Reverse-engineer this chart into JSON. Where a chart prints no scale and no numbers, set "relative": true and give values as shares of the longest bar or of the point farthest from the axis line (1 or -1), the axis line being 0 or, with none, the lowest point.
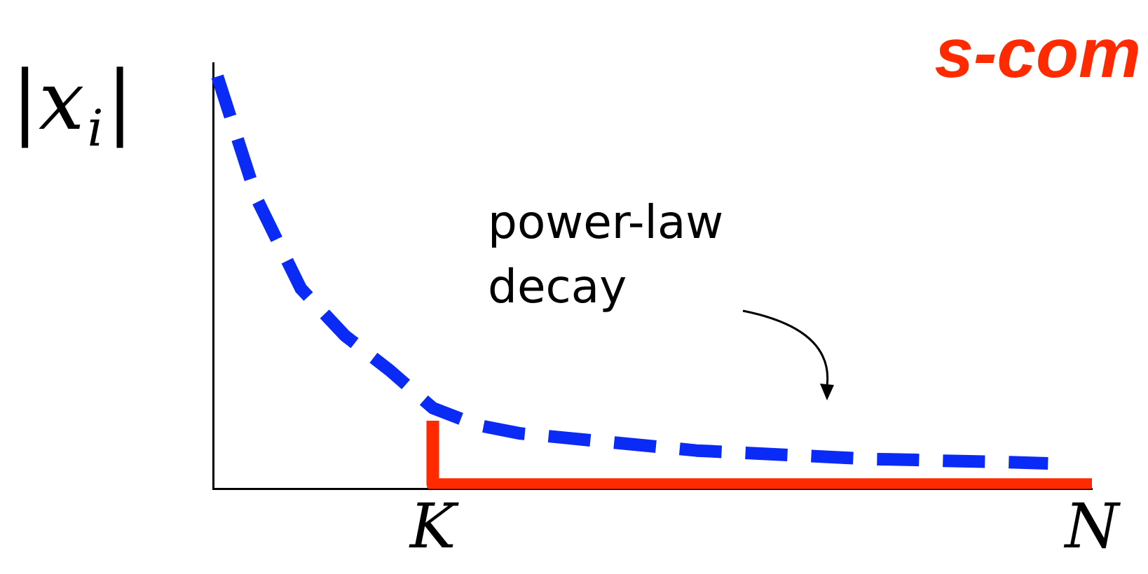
{
  "chart_data": {
    "type": "line",
    "relative": true,
    "title": "s-com",
    "ylabel": "|x$_{i}$|",
    "categories": [
      null,
      null,
      null,
      null,
      null,
      "K",
      null,
      null,
      null,
      null,
      null,
      null,
      null,
      null,
      null,
      null,
      null,
      null,
      null,
      null,
      "N"
    ],
    "grid": false,
    "legend": false,
    "marker": "none",
    "annotations": [
      "power-law decay"
    ],
    "series": [
      {
        "color": "#0a2bf5",
        "line_style": "dashed",
        "values": [
          1,
          0.68,
          0.47,
          0.36,
          0.28,
          0.19,
          0.15,
          0.13,
          0.12,
          0.11,
          0.1,
          0.09,
          0.085,
          0.08,
          0.075,
          0.07,
          0.068,
          0.065,
          0.063,
          0.06,
          null
        ]
      },
      {
        "type": "step",
        "color": "#ff2a00",
        "line_style": "solid",
        "values": [
          null,
          null,
          null,
          null,
          null,
          0.16,
          0.01,
          0.01,
          0.01,
          0.01,
          0.01,
          0.01,
          0.01,
          0.01,
          0.01,
          0.01,
          0.01,
          0.01,
          0.01,
          0.01,
          0.01
        ]
      }
    ]
  }
}
